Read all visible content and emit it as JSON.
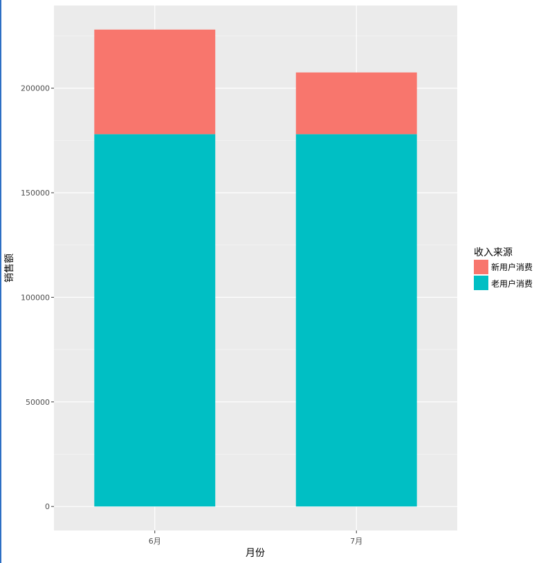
{
  "chart_data": {
    "type": "bar",
    "stacked": true,
    "categories": [
      "6月",
      "7月"
    ],
    "series": [
      {
        "name": "老用户消费",
        "values": [
          178000,
          178000
        ],
        "color": "#00BFC4"
      },
      {
        "name": "新用户消费",
        "values": [
          50000,
          29500
        ],
        "color": "#F8766D"
      }
    ],
    "xlabel": "月份",
    "ylabel": "销售额",
    "ylim": [
      -11500,
      239500
    ],
    "yticks": [
      0,
      50000,
      100000,
      150000,
      200000
    ],
    "ytick_labels": [
      "0",
      "50000",
      "100000",
      "150000",
      "200000"
    ],
    "grid": true,
    "panel_background": "#EBEBEB",
    "legend": {
      "title": "收入来源",
      "position": "right",
      "items": [
        {
          "label": "新用户消费",
          "color": "#F8766D"
        },
        {
          "label": "老用户消费",
          "color": "#00BFC4"
        }
      ]
    }
  }
}
